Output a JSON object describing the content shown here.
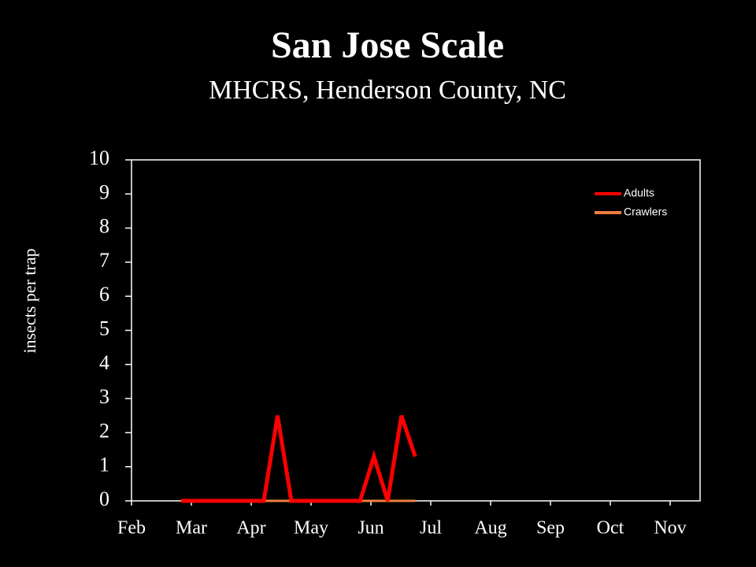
{
  "chart_data": {
    "type": "line",
    "title": "San Jose Scale",
    "subtitle": "MHCRS, Henderson County, NC",
    "y_label": "insects per trap",
    "x": [
      0.83,
      1.06,
      1.29,
      1.52,
      1.75,
      1.98,
      2.21,
      2.44,
      2.67,
      2.9,
      3.13,
      3.36,
      3.59,
      3.82,
      4.05,
      4.28,
      4.51,
      4.74
    ],
    "series": [
      {
        "name": "Adults",
        "color": "#ff0000",
        "values": [
          0,
          0,
          0,
          0,
          0,
          0,
          0,
          2.5,
          0,
          0,
          0,
          0,
          0,
          0,
          1.3,
          0,
          2.5,
          1.3
        ]
      },
      {
        "name": "Crawlers",
        "color": "#f07f3c",
        "values": [
          0,
          0,
          0,
          0,
          0,
          0,
          0,
          0,
          0,
          0,
          0,
          0,
          0,
          0,
          0,
          0,
          0,
          0
        ]
      }
    ],
    "xlim": [
      0,
      9.5
    ],
    "xticks": [
      {
        "value": 0,
        "label": "Feb"
      },
      {
        "value": 1,
        "label": "Mar"
      },
      {
        "value": 2,
        "label": "Apr"
      },
      {
        "value": 3,
        "label": "May"
      },
      {
        "value": 4,
        "label": "Jun"
      },
      {
        "value": 5,
        "label": "Jul"
      },
      {
        "value": 6,
        "label": "Aug"
      },
      {
        "value": 7,
        "label": "Sep"
      },
      {
        "value": 8,
        "label": "Oct"
      },
      {
        "value": 9,
        "label": "Nov"
      }
    ],
    "ylim": [
      0,
      10
    ],
    "yticks": [
      0,
      1,
      2,
      3,
      4,
      5,
      6,
      7,
      8,
      9,
      10
    ],
    "legend": "upper-right"
  }
}
